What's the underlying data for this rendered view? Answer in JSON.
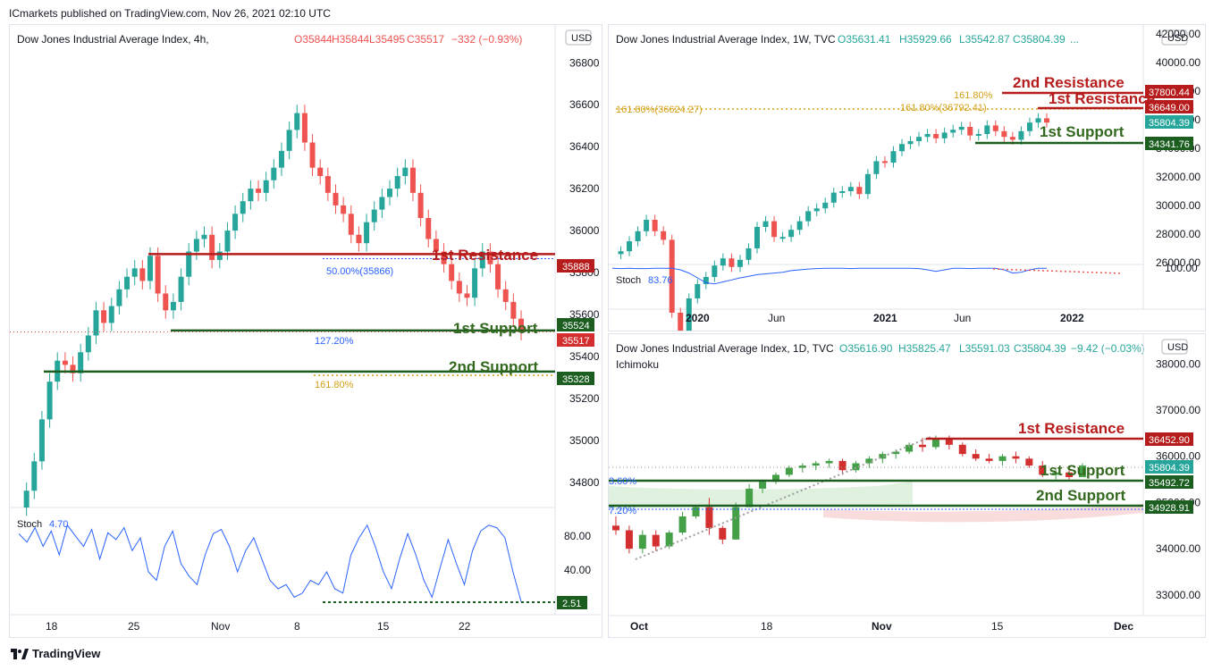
{
  "header": "ICmarkets published on TradingView.com, Nov 26, 2021 02:10 UTC",
  "footer": {
    "brand": "TradingView"
  },
  "colors": {
    "up": "#26a69a",
    "down": "#ef5350",
    "resistance": "#b71c1c",
    "support": "#1b5e20",
    "fib": "#d4a017",
    "stoch": "#2962ff"
  },
  "chart_data": [
    {
      "type": "candlestick",
      "title": "Dow Jones Industrial Average Index, 4h,",
      "ohlc": {
        "o": "O35844",
        "h": "H35844",
        "l": "L35495",
        "c": "C35517",
        "chg": "−332 (−0.93%)"
      },
      "currency": "USD",
      "x_ticks": [
        "18",
        "25",
        "Nov",
        "8",
        "15",
        "22"
      ],
      "y_ticks": [
        34800,
        35000,
        35200,
        35400,
        35600,
        35800,
        36000,
        36200,
        36400,
        36600,
        36800
      ],
      "ylim": [
        34680,
        36980
      ],
      "levels": [
        {
          "label": "1st Resistance",
          "value": 35888,
          "kind": "resistance"
        },
        {
          "label": "1st Support",
          "value": 35524,
          "kind": "support"
        },
        {
          "label": "2nd Support",
          "value": 35328,
          "kind": "support"
        }
      ],
      "fib_labels": [
        "50.00%(35866)",
        "127.20%",
        "161.80%"
      ],
      "price_tags": [
        "35888",
        "35524",
        "35517",
        "35328"
      ],
      "stoch": {
        "label": "Stoch",
        "value": "4.70",
        "ticks": [
          "80.00",
          "40.00"
        ],
        "tag": "2.51"
      },
      "close_series": [
        34680,
        34760,
        34900,
        35100,
        35280,
        35380,
        35360,
        35320,
        35420,
        35500,
        35620,
        35560,
        35640,
        35720,
        35780,
        35820,
        35760,
        35880,
        35700,
        35620,
        35660,
        35780,
        35900,
        35960,
        35980,
        35860,
        35900,
        36000,
        36080,
        36140,
        36200,
        36180,
        36240,
        36300,
        36380,
        36480,
        36560,
        36420,
        36300,
        36260,
        36180,
        36120,
        36080,
        35980,
        35940,
        36040,
        36100,
        36160,
        36200,
        36260,
        36300,
        36180,
        36060,
        35960,
        35900,
        35840,
        35760,
        35700,
        35680,
        35820,
        35900,
        35840,
        35720,
        35660,
        35580,
        35517
      ]
    },
    {
      "type": "candlestick",
      "title": "Dow Jones Industrial Average Index, 1W, TVC",
      "ohlc": {
        "o": "O35631.41",
        "h": "H35929.66",
        "l": "L35542.87",
        "c": "C35804.39",
        "chg": "..."
      },
      "currency": "USD",
      "x_ticks": [
        "2020",
        "Jun",
        "2021",
        "Jun",
        "2022"
      ],
      "y_ticks": [
        "42000.00",
        "40000.00",
        "38000.00",
        "36000.00",
        "34000.00",
        "32000.00",
        "30000.00",
        "28000.00",
        "26000.00"
      ],
      "levels": [
        {
          "label": "2nd Resistance",
          "value": 37800.44,
          "kind": "resistance"
        },
        {
          "label": "1st Resistance",
          "value": 36649.0,
          "kind": "resistance"
        },
        {
          "label": "1st Support",
          "value": 34341.76,
          "kind": "support"
        }
      ],
      "fib_labels": [
        "161.80%(36624.27)",
        "161.80%(36792.41)",
        "161.80%"
      ],
      "price_tags": [
        "37800.44",
        "36649.00",
        "35804.39",
        "34341.76"
      ],
      "stoch": {
        "label": "Stoch",
        "value": "83.76",
        "ticks": [
          "100.00"
        ]
      },
      "close_series": [
        26600,
        26800,
        27500,
        28200,
        29000,
        28200,
        27600,
        22500,
        21000,
        23500,
        24500,
        25000,
        25800,
        26300,
        25700,
        26200,
        27000,
        28500,
        28900,
        27800,
        27800,
        28300,
        28900,
        29600,
        29800,
        30200,
        30900,
        31000,
        31300,
        30800,
        32200,
        33100,
        33000,
        33800,
        34300,
        34500,
        34800,
        35000,
        34700,
        35100,
        35300,
        35500,
        34900,
        35000,
        35600,
        35200,
        34800,
        34600,
        35200,
        35800,
        36100,
        35800
      ]
    },
    {
      "type": "candlestick",
      "title": "Dow Jones Industrial Average Index, 1D, TVC",
      "subtitle": "Ichimoku",
      "ohlc": {
        "o": "O35616.90",
        "h": "H35825.47",
        "l": "L35591.03",
        "c": "C35804.39",
        "chg": "−9.42 (−0.03%)"
      },
      "currency": "USD",
      "x_ticks": [
        "Oct",
        "18",
        "Nov",
        "15",
        "Dec"
      ],
      "y_ticks": [
        "38000.00",
        "37000.00",
        "36000.00",
        "35000.00",
        "34000.00",
        "33000.00"
      ],
      "ylim": [
        32650,
        38450
      ],
      "levels": [
        {
          "label": "1st Resistance",
          "value": 36452.9,
          "kind": "resistance"
        },
        {
          "label": "1st Support",
          "value": 35492.72,
          "kind": "support"
        },
        {
          "label": "2nd Support",
          "value": 34928.91,
          "kind": "support"
        }
      ],
      "fib_labels": [
        "3.60%",
        "7.20%"
      ],
      "price_tags": [
        "36452.90",
        "35804.39",
        "35492.72",
        "34928.91"
      ],
      "ohlc_series": [
        [
          34500,
          34700,
          34300,
          34400
        ],
        [
          34400,
          34500,
          33900,
          34000
        ],
        [
          34000,
          34400,
          33900,
          34300
        ],
        [
          34300,
          34400,
          33950,
          34050
        ],
        [
          34050,
          34400,
          34000,
          34350
        ],
        [
          34350,
          34800,
          34300,
          34700
        ],
        [
          34700,
          34950,
          34650,
          34900
        ],
        [
          34900,
          35100,
          34300,
          34450
        ],
        [
          34450,
          34500,
          34100,
          34200
        ],
        [
          34200,
          35000,
          34200,
          34900
        ],
        [
          34900,
          35400,
          34900,
          35300
        ],
        [
          35300,
          35500,
          35200,
          35450
        ],
        [
          35450,
          35650,
          35400,
          35600
        ],
        [
          35600,
          35800,
          35550,
          35750
        ],
        [
          35750,
          35850,
          35650,
          35800
        ],
        [
          35800,
          35900,
          35700,
          35850
        ],
        [
          35850,
          35950,
          35750,
          35900
        ],
        [
          35900,
          35950,
          35600,
          35700
        ],
        [
          35700,
          35900,
          35650,
          35850
        ],
        [
          35850,
          36000,
          35750,
          35950
        ],
        [
          35950,
          36100,
          35850,
          36050
        ],
        [
          36050,
          36150,
          35950,
          36100
        ],
        [
          36100,
          36300,
          36050,
          36250
        ],
        [
          36250,
          36400,
          36100,
          36200
        ],
        [
          36200,
          36450,
          36150,
          36400
        ],
        [
          36400,
          36450,
          36150,
          36250
        ],
        [
          36250,
          36300,
          36000,
          36050
        ],
        [
          36050,
          36150,
          35900,
          35950
        ],
        [
          35950,
          36050,
          35850,
          35900
        ],
        [
          35900,
          36050,
          35800,
          36000
        ],
        [
          36000,
          36100,
          35850,
          35950
        ],
        [
          35950,
          36000,
          35750,
          35800
        ],
        [
          35800,
          35900,
          35550,
          35600
        ],
        [
          35600,
          35700,
          35500,
          35650
        ],
        [
          35650,
          35750,
          35500,
          35550
        ],
        [
          35550,
          35850,
          35550,
          35800
        ]
      ]
    }
  ]
}
